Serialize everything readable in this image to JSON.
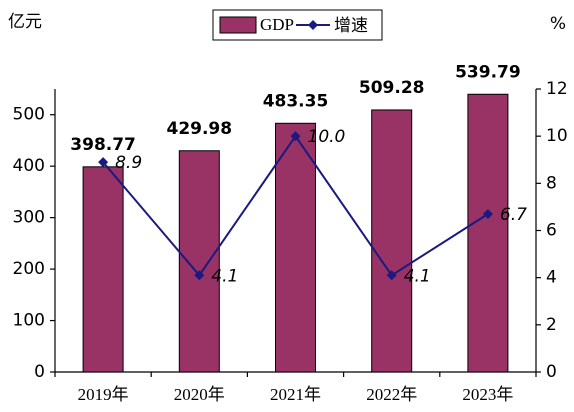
{
  "chart_data": {
    "type": "bar",
    "y_label": "亿元",
    "y2_label": "%",
    "categories": [
      "2019年",
      "2020年",
      "2021年",
      "2022年",
      "2023年"
    ],
    "series": [
      {
        "name": "GDP",
        "type": "bar",
        "color": "#993366",
        "values": [
          398.77,
          429.98,
          483.35,
          509.28,
          539.79
        ]
      },
      {
        "name": "增速",
        "type": "line",
        "axis": "y2",
        "color": "#1a1a80",
        "values": [
          8.9,
          4.1,
          10,
          4.1,
          6.7
        ],
        "value_labels": [
          "8.9",
          "4.1",
          "10.0",
          "4.1",
          "6.7"
        ]
      }
    ],
    "ylim": [
      0,
      550
    ],
    "yticks": [
      0,
      100,
      200,
      300,
      400,
      500
    ],
    "y2lim": [
      0,
      12
    ],
    "y2ticks": [
      0,
      2,
      4,
      6,
      8,
      10,
      12
    ],
    "legend": "top",
    "grid": false
  }
}
